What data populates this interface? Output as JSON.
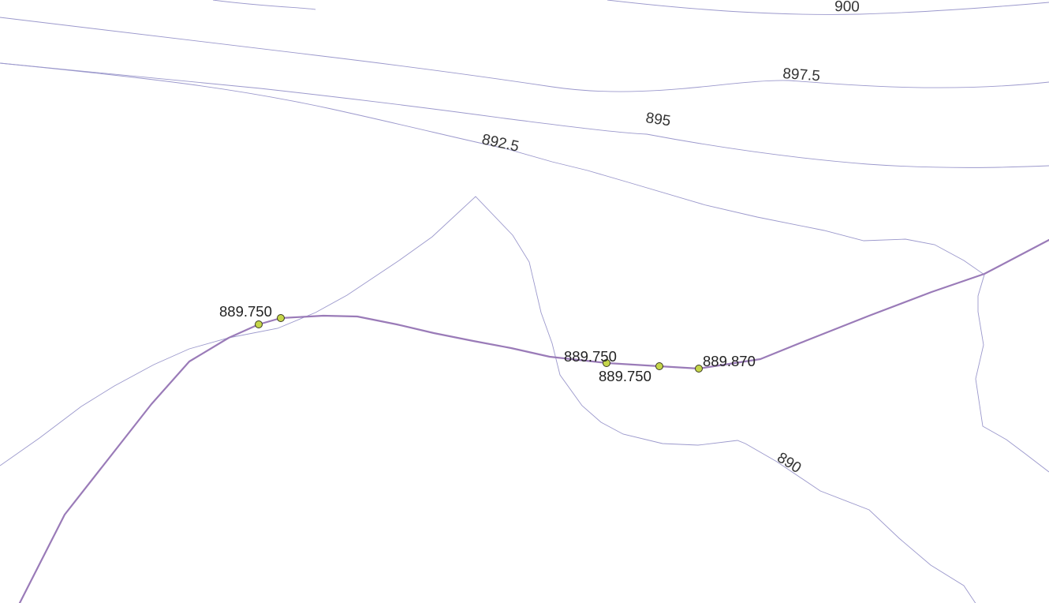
{
  "style": {
    "contour_color": "#9b98cc",
    "road_color": "#9a7bb8",
    "vertex_fill": "#c5d64a",
    "background": "#ffffff"
  },
  "contours": {
    "c900": "900",
    "c897_5": "897.5",
    "c895": "895",
    "c892_5": "892.5",
    "c890": "890"
  },
  "road_points": {
    "p1": "889.750",
    "p3": "889.750",
    "p3b": "889.750",
    "p5": "889.870"
  }
}
